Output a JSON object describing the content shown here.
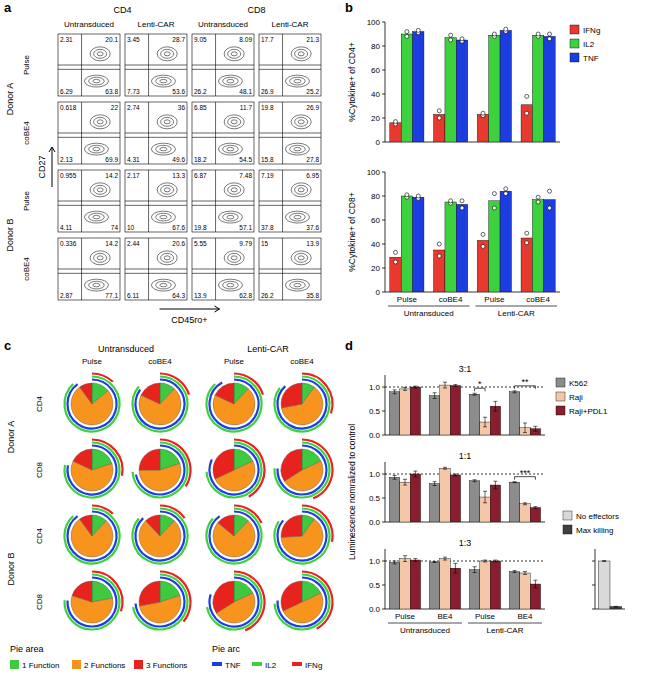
{
  "chart_data": [
    {
      "type": "flow_grid",
      "panel": "a",
      "x_label": "CD45ro+",
      "y_label": "CD27",
      "column_groups": [
        "CD4",
        "CD8"
      ],
      "columns": [
        "Untransduced",
        "Lenti-CAR",
        "Untransduced",
        "Lenti-CAR"
      ],
      "row_groups": [
        "Donor A",
        "Donor B"
      ],
      "rows": [
        "Pulse",
        "coBE4",
        "Pulse",
        "coBE4"
      ],
      "quadrants": [
        [
          [
            2.31,
            20.1,
            6.29,
            63.8
          ],
          [
            3.45,
            28.7,
            7.73,
            53.6
          ],
          [
            9.05,
            8.09,
            26.2,
            48.1
          ],
          [
            17.7,
            21.3,
            26.9,
            25.2
          ]
        ],
        [
          [
            0.618,
            22,
            2.13,
            69.9
          ],
          [
            2.74,
            36,
            4.31,
            49.6
          ],
          [
            6.85,
            11.7,
            18.2,
            54.5
          ],
          [
            19.8,
            26.9,
            15.8,
            27.8
          ]
        ],
        [
          [
            0.955,
            14.2,
            4.11,
            74
          ],
          [
            2.17,
            13.3,
            10,
            67.6
          ],
          [
            6.87,
            7.48,
            19.8,
            57.1
          ],
          [
            7.19,
            6.95,
            37.8,
            37.6
          ]
        ],
        [
          [
            0.336,
            14.2,
            2.87,
            77.1
          ],
          [
            2.44,
            20.6,
            6.11,
            64.3
          ],
          [
            5.55,
            9.79,
            13.9,
            62.8
          ],
          [
            15,
            13.9,
            26.2,
            35.8
          ]
        ]
      ]
    },
    {
      "type": "bar",
      "panel": "b",
      "y_label": "%Cytokine+ of CD4+",
      "ylim": [
        0,
        100
      ],
      "yticks": [
        0,
        20,
        40,
        60,
        80,
        100
      ],
      "tick_labels": "y",
      "legend": "right",
      "series": [
        {
          "name": "IFNg",
          "color": "#e8392f",
          "values": [
            16,
            23,
            23,
            31
          ],
          "replicates": [
            [
              15,
              17
            ],
            [
              20,
              26
            ],
            [
              22,
              24
            ],
            [
              24,
              38
            ]
          ]
        },
        {
          "name": "IL2",
          "color": "#3ed13e",
          "values": [
            90,
            87,
            89,
            89
          ],
          "replicates": [
            [
              88,
              92
            ],
            [
              85,
              89
            ],
            [
              88,
              90
            ],
            [
              88,
              90
            ]
          ]
        },
        {
          "name": "TNF",
          "color": "#1c3de0",
          "values": [
            92,
            85,
            93,
            88
          ],
          "replicates": [
            [
              91,
              93
            ],
            [
              84,
              86
            ],
            [
              92,
              94
            ],
            [
              86,
              90
            ]
          ]
        }
      ]
    },
    {
      "type": "bar",
      "y_label": "%Cytokine+ of CD8+",
      "ylim": [
        0,
        100
      ],
      "yticks": [
        0,
        20,
        40,
        60,
        80,
        100
      ],
      "tick_labels": true,
      "categories": [
        "Pulse",
        "coBE4",
        "Pulse",
        "coBE4"
      ],
      "category_groups": [
        {
          "label": "Untransduced",
          "count": 2
        },
        {
          "label": "Lenti-CAR",
          "count": 2
        }
      ],
      "series": [
        {
          "color": "#e8392f",
          "values": [
            29,
            35,
            43,
            45
          ],
          "replicates": [
            [
              25,
              33
            ],
            [
              30,
              40
            ],
            [
              38,
              48
            ],
            [
              41,
              49
            ]
          ]
        },
        {
          "color": "#3ed13e",
          "values": [
            80,
            75,
            76,
            77
          ],
          "replicates": [
            [
              79,
              81
            ],
            [
              74,
              76
            ],
            [
              70,
              82
            ],
            [
              75,
              79
            ]
          ]
        },
        {
          "color": "#1c3de0",
          "values": [
            79,
            73,
            84,
            77
          ],
          "replicates": [
            [
              78,
              80
            ],
            [
              70,
              76
            ],
            [
              82,
              86
            ],
            [
              70,
              84
            ]
          ]
        }
      ]
    },
    {
      "type": "pie_grid",
      "panel": "c",
      "column_groups": [
        "Untransduced",
        "Lenti-CAR"
      ],
      "columns": [
        "Pulse",
        "coBE4",
        "Pulse",
        "coBE4"
      ],
      "row_groups": [
        "Donor A",
        "Donor B"
      ],
      "rows": [
        "CD4",
        "CD8",
        "CD4",
        "CD8"
      ],
      "slice_title": "Pie area",
      "series": [
        {
          "name": "1 Function",
          "color": "#3ec93e"
        },
        {
          "name": "2 Functions",
          "color": "#f7941d"
        },
        {
          "name": "3 Functions",
          "color": "#e8231d"
        }
      ],
      "arc_title": "Pie arc",
      "arc_series": [
        {
          "name": "TNF",
          "color": "#1c3de0"
        },
        {
          "name": "IL2",
          "color": "#3ed13e"
        },
        {
          "name": "IFNg",
          "color": "#e8231d"
        }
      ],
      "pies": [
        [
          {
            "values": [
              14,
              76,
              10
            ],
            "arcs": [
              90,
              88,
              12
            ]
          },
          {
            "values": [
              12,
              70,
              18
            ],
            "arcs": [
              85,
              86,
              20
            ]
          },
          {
            "values": [
              12,
              70,
              18
            ],
            "arcs": [
              92,
              88,
              20
            ]
          },
          {
            "values": [
              10,
              62,
              28
            ],
            "arcs": [
              88,
              85,
              30
            ]
          }
        ],
        [
          {
            "values": [
              20,
              62,
              18
            ],
            "arcs": [
              78,
              78,
              28
            ]
          },
          {
            "values": [
              20,
              55,
              25
            ],
            "arcs": [
              72,
              74,
              34
            ]
          },
          {
            "values": [
              18,
              50,
              32
            ],
            "arcs": [
              82,
              74,
              42
            ]
          },
          {
            "values": [
              18,
              48,
              34
            ],
            "arcs": [
              76,
              76,
              44
            ]
          }
        ],
        [
          {
            "values": [
              12,
              78,
              10
            ],
            "arcs": [
              90,
              88,
              12
            ]
          },
          {
            "values": [
              12,
              76,
              12
            ],
            "arcs": [
              88,
              86,
              15
            ]
          },
          {
            "values": [
              12,
              74,
              14
            ],
            "arcs": [
              90,
              86,
              18
            ]
          },
          {
            "values": [
              10,
              64,
              26
            ],
            "arcs": [
              86,
              84,
              28
            ]
          }
        ],
        [
          {
            "values": [
              22,
              58,
              20
            ],
            "arcs": [
              76,
              76,
              30
            ]
          },
          {
            "values": [
              20,
              52,
              28
            ],
            "arcs": [
              74,
              72,
              36
            ]
          },
          {
            "values": [
              18,
              48,
              34
            ],
            "arcs": [
              80,
              72,
              44
            ]
          },
          {
            "values": [
              18,
              50,
              32
            ],
            "arcs": [
              76,
              74,
              42
            ]
          }
        ]
      ]
    },
    {
      "type": "bar",
      "panel": "d",
      "title": "3:1",
      "ylim": [
        0,
        1.25
      ],
      "yticks": [
        {
          "value": 0,
          "label": "0.0"
        },
        {
          "value": 0.5,
          "label": "0.5"
        },
        {
          "value": 1,
          "label": "1.0"
        }
      ],
      "reference": 1,
      "tick_labels": "y",
      "legend": "right",
      "series": [
        {
          "name": "K562",
          "color": "#8c8c8c",
          "values": [
            0.9,
            0.82,
            0.85,
            0.9
          ],
          "errors": [
            0.04,
            0.06,
            0.02,
            0.02
          ]
        },
        {
          "name": "Raji",
          "color": "#f4c7a8",
          "values": [
            0.96,
            1.04,
            0.27,
            0.15
          ],
          "errors": [
            0.03,
            0.06,
            0.1,
            0.1
          ]
        },
        {
          "name": "Raji+PDL1",
          "color": "#8b1e2e",
          "values": [
            1.0,
            1.03,
            0.6,
            0.13
          ],
          "errors": [
            0.02,
            0.02,
            0.1,
            0.05
          ]
        }
      ],
      "annotations": [
        {
          "text": "*",
          "category": 2,
          "from": 0,
          "to": 1
        },
        {
          "text": "**",
          "category": 3,
          "from": 0,
          "to": 2
        }
      ]
    },
    {
      "type": "bar",
      "title": "1:1",
      "y_label": "Luminescence nomralized to control",
      "ylim": [
        0,
        1.25
      ],
      "yticks": [
        {
          "value": 0,
          "label": "0.0"
        },
        {
          "value": 0.5,
          "label": "0.5"
        },
        {
          "value": 1,
          "label": "1.0"
        }
      ],
      "reference": 1,
      "tick_labels": "y",
      "series": [
        {
          "color": "#8c8c8c",
          "values": [
            0.93,
            0.8,
            0.86,
            0.83
          ],
          "errors": [
            0.04,
            0.04,
            0.02,
            0.01
          ]
        },
        {
          "color": "#f4c7a8",
          "values": [
            0.83,
            1.12,
            0.52,
            0.38
          ],
          "errors": [
            0.06,
            0.02,
            0.12,
            0.02
          ]
        },
        {
          "color": "#8b1e2e",
          "values": [
            1.0,
            0.98,
            0.77,
            0.3
          ],
          "errors": [
            0.06,
            0.02,
            0.08,
            0.02
          ]
        }
      ],
      "annotations": [
        {
          "text": "***",
          "category": 3,
          "from": 0,
          "to": 2
        }
      ]
    },
    {
      "type": "bar",
      "title": "1:3",
      "ylim": [
        0,
        1.25
      ],
      "yticks": [
        {
          "value": 0,
          "label": "0.0"
        },
        {
          "value": 0.5,
          "label": "0.5"
        },
        {
          "value": 1,
          "label": "1.0"
        }
      ],
      "reference": 1,
      "tick_labels": true,
      "categories": [
        "Pulse",
        "BE4",
        "Pulse",
        "BE4"
      ],
      "category_groups": [
        {
          "label": "Untransduced",
          "count": 2
        },
        {
          "label": "Lenti-CAR",
          "count": 2
        }
      ],
      "series": [
        {
          "color": "#8c8c8c",
          "values": [
            0.97,
            0.98,
            0.82,
            0.78
          ],
          "errors": [
            0.03,
            0.01,
            0.06,
            0.02
          ]
        },
        {
          "color": "#f4c7a8",
          "values": [
            1.05,
            1.05,
            1.0,
            0.75
          ],
          "errors": [
            0.06,
            0.03,
            0.02,
            0.03
          ]
        },
        {
          "color": "#8b1e2e",
          "values": [
            1.02,
            0.85,
            1.0,
            0.52
          ],
          "errors": [
            0.03,
            0.1,
            0.02,
            0.08
          ]
        }
      ]
    },
    {
      "type": "bar",
      "ylim": [
        0,
        1.25
      ],
      "yticks": [
        0,
        0.5,
        1
      ],
      "tick_labels": false,
      "legend": "top",
      "series": [
        {
          "name": "No effectors",
          "color": "#d9d9d9",
          "values": [
            1.0
          ],
          "errors": [
            0.01
          ]
        },
        {
          "name": "Max killing",
          "color": "#404040",
          "values": [
            0.05
          ],
          "errors": [
            0.005
          ]
        }
      ]
    }
  ]
}
